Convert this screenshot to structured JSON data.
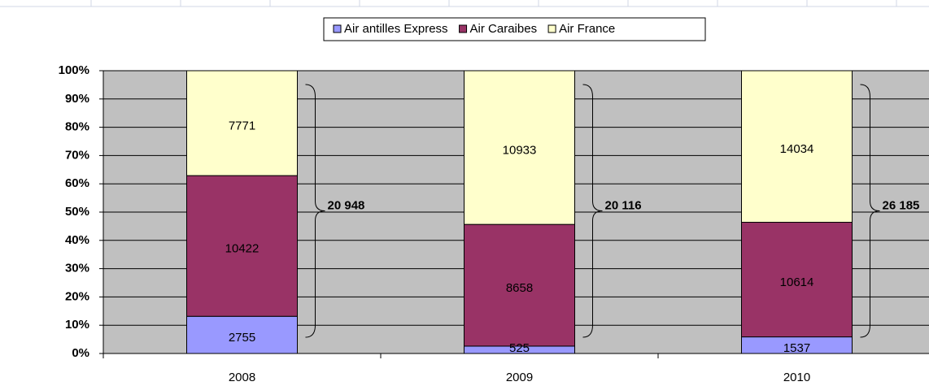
{
  "chart_data": {
    "type": "bar",
    "stacking": "percent",
    "categories": [
      "2008",
      "2009",
      "2010"
    ],
    "series": [
      {
        "name": "Air antilles Express",
        "color": "#9999ff",
        "values": [
          2755,
          525,
          1537
        ]
      },
      {
        "name": "Air Caraibes",
        "color": "#993366",
        "values": [
          10422,
          8658,
          10614
        ]
      },
      {
        "name": "Air France",
        "color": "#ffffcc",
        "values": [
          7771,
          10933,
          14034
        ]
      }
    ],
    "annotations": [
      "20 948",
      "20 116",
      "26 185"
    ],
    "ylim": [
      0,
      100
    ],
    "yticks": [
      {
        "value": 0,
        "label": "0%"
      },
      {
        "value": 10,
        "label": "10%"
      },
      {
        "value": 20,
        "label": "20%"
      },
      {
        "value": 30,
        "label": "30%"
      },
      {
        "value": 40,
        "label": "40%"
      },
      {
        "value": 50,
        "label": "50%"
      },
      {
        "value": 60,
        "label": "60%"
      },
      {
        "value": 70,
        "label": "70%"
      },
      {
        "value": 80,
        "label": "80%"
      },
      {
        "value": 90,
        "label": "90%"
      },
      {
        "value": 100,
        "label": "100%"
      }
    ],
    "grid": true,
    "legend": "top"
  }
}
